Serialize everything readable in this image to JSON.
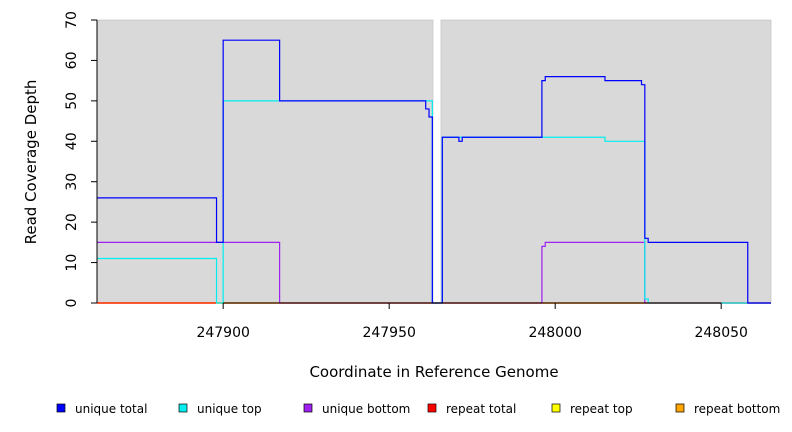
{
  "chart_data": {
    "type": "line",
    "xlabel": "Coordinate in Reference Genome",
    "ylabel": "Read Coverage Depth",
    "xlim": [
      247862,
      248065
    ],
    "ylim": [
      0,
      70
    ],
    "x_ticks": [
      247900,
      247950,
      248000,
      248050
    ],
    "y_ticks": [
      0,
      10,
      20,
      30,
      40,
      50,
      60,
      70
    ],
    "background": "#d9d9d9",
    "gaps": [
      [
        247963.2,
        247965.6
      ]
    ],
    "legend_position": "bottom",
    "series": [
      {
        "name": "unique total",
        "color": "#0000ff",
        "points": [
          [
            247862,
            26
          ],
          [
            247898,
            26
          ],
          [
            247898,
            15
          ],
          [
            247900,
            15
          ],
          [
            247900,
            65
          ],
          [
            247917,
            65
          ],
          [
            247917,
            50
          ],
          [
            247961,
            50
          ],
          [
            247961,
            48
          ],
          [
            247962,
            48
          ],
          [
            247962,
            46
          ],
          [
            247963,
            46
          ],
          [
            247963,
            0
          ],
          [
            247966,
            0
          ],
          [
            247966,
            41
          ],
          [
            247971,
            41
          ],
          [
            247971,
            40
          ],
          [
            247972,
            40
          ],
          [
            247972,
            41
          ],
          [
            247996,
            41
          ],
          [
            247996,
            55
          ],
          [
            247997,
            55
          ],
          [
            247997,
            56
          ],
          [
            248015,
            56
          ],
          [
            248015,
            55
          ],
          [
            248026,
            55
          ],
          [
            248026,
            54
          ],
          [
            248027,
            54
          ],
          [
            248027,
            16
          ],
          [
            248028,
            16
          ],
          [
            248028,
            15
          ],
          [
            248058,
            15
          ],
          [
            248058,
            0
          ],
          [
            248065,
            0
          ]
        ]
      },
      {
        "name": "unique top",
        "color": "#00eeee",
        "points": [
          [
            247862,
            11
          ],
          [
            247898,
            11
          ],
          [
            247898,
            0
          ],
          [
            247900,
            0
          ],
          [
            247900,
            50
          ],
          [
            247963,
            50
          ],
          [
            247963,
            0
          ],
          [
            247966,
            0
          ],
          [
            247966,
            41
          ],
          [
            248015,
            41
          ],
          [
            248015,
            40
          ],
          [
            248027,
            40
          ],
          [
            248027,
            1
          ],
          [
            248028,
            1
          ],
          [
            248028,
            0
          ],
          [
            248065,
            0
          ]
        ]
      },
      {
        "name": "unique bottom",
        "color": "#a020f0",
        "points": [
          [
            247862,
            15
          ],
          [
            247917,
            15
          ],
          [
            247917,
            0
          ],
          [
            247996,
            0
          ],
          [
            247996,
            14
          ],
          [
            247997,
            14
          ],
          [
            247997,
            15
          ],
          [
            248027,
            15
          ],
          [
            248027,
            0
          ],
          [
            248065,
            0
          ]
        ]
      },
      {
        "name": "repeat total",
        "color": "#ff0000",
        "points": [
          [
            247862,
            0
          ],
          [
            248065,
            0
          ]
        ]
      },
      {
        "name": "repeat top",
        "color": "#ffff00",
        "points": [
          [
            247862,
            0
          ],
          [
            248065,
            0
          ]
        ]
      },
      {
        "name": "repeat bottom",
        "color": "#ffa500",
        "points": [
          [
            247862,
            0
          ],
          [
            248065,
            0
          ]
        ]
      }
    ]
  }
}
